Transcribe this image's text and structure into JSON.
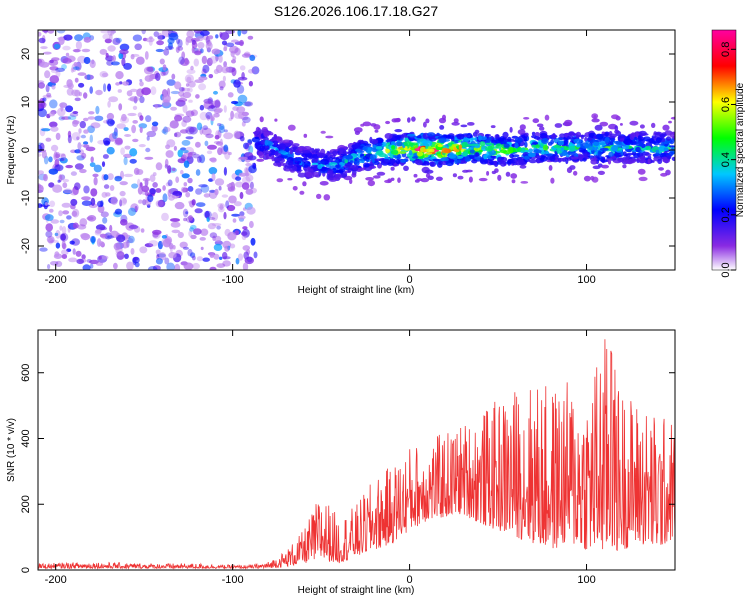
{
  "title": "S126.2026.106.17.18.G27",
  "chart_data": [
    {
      "type": "heatmap",
      "xlabel": "Height of straight line (km)",
      "ylabel": "Frequency (Hz)",
      "xlim": [
        -210,
        150
      ],
      "ylim": [
        -25,
        25
      ],
      "xticks": [
        -200,
        -100,
        0,
        100
      ],
      "yticks": [
        -20,
        -10,
        0,
        10,
        20
      ],
      "noise_region_x": [
        -210,
        -87
      ],
      "signal_track": {
        "x": [
          -87,
          -80,
          -70,
          -60,
          -50,
          -40,
          -30,
          -20,
          -10,
          0,
          10,
          20,
          30,
          40,
          50,
          60,
          70,
          80,
          90,
          100,
          110,
          120,
          130,
          140,
          150
        ],
        "freq": [
          1.5,
          1.0,
          -1.0,
          -2.5,
          -3.0,
          -3.0,
          -1.5,
          -0.5,
          0.0,
          0.5,
          0.0,
          0.0,
          0.5,
          0.5,
          0.0,
          0.0,
          0.5,
          0.5,
          0.5,
          0.5,
          0.5,
          0.5,
          0.5,
          0.5,
          0.5
        ],
        "peak_amplitude": [
          0.25,
          0.3,
          0.3,
          0.3,
          0.35,
          0.35,
          0.4,
          0.5,
          0.6,
          0.8,
          0.85,
          0.8,
          0.7,
          0.6,
          0.6,
          0.5,
          0.5,
          0.5,
          0.45,
          0.45,
          0.5,
          0.4,
          0.4,
          0.4,
          0.4
        ]
      },
      "colorbar": {
        "label": "Normalized spectral amplitude",
        "range": [
          0,
          0.87
        ],
        "ticks": [
          "0.0",
          "0.2",
          "0.4",
          "0.6",
          "0.8"
        ]
      }
    },
    {
      "type": "line",
      "xlabel": "Height of straight line (km)",
      "ylabel": "SNR (10 * v/v)",
      "xlim": [
        -210,
        150
      ],
      "ylim": [
        0,
        730
      ],
      "xticks": [
        -200,
        -100,
        0,
        100
      ],
      "yticks": [
        0,
        200,
        400,
        600
      ],
      "color": "#ee3333",
      "envelope": {
        "x": [
          -210,
          -180,
          -150,
          -120,
          -100,
          -90,
          -80,
          -70,
          -60,
          -50,
          -40,
          -30,
          -20,
          -10,
          0,
          10,
          20,
          30,
          40,
          50,
          60,
          70,
          80,
          90,
          100,
          110,
          120,
          130,
          140,
          150
        ],
        "low": [
          5,
          5,
          5,
          5,
          5,
          5,
          5,
          10,
          20,
          30,
          20,
          40,
          60,
          80,
          120,
          150,
          160,
          170,
          140,
          120,
          100,
          80,
          60,
          80,
          60,
          50,
          60,
          80,
          60,
          100
        ],
        "high": [
          20,
          25,
          20,
          20,
          15,
          15,
          25,
          60,
          120,
          240,
          160,
          200,
          280,
          320,
          380,
          400,
          420,
          450,
          480,
          520,
          560,
          580,
          560,
          580,
          560,
          730,
          560,
          520,
          480,
          460
        ]
      }
    }
  ]
}
